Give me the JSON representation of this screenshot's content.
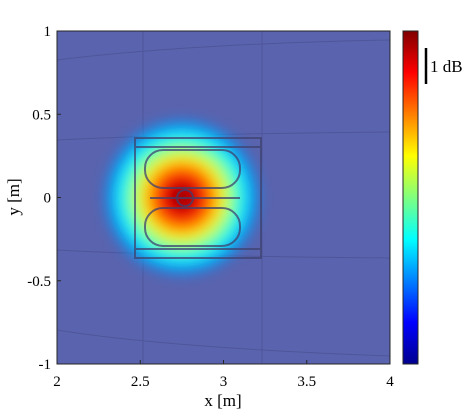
{
  "chart_data": {
    "type": "heatmap",
    "title": "",
    "xlabel": "x [m]",
    "ylabel": "y [m]",
    "xlim": [
      2,
      4
    ],
    "ylim": [
      -1,
      1
    ],
    "x_ticks": [
      2,
      2.5,
      3,
      3.5,
      4
    ],
    "x_tick_labels": [
      "2",
      "2.5",
      "3",
      "3.5",
      "4"
    ],
    "y_ticks": [
      -1,
      -0.5,
      0,
      0.5,
      1
    ],
    "y_tick_labels": [
      "-1",
      "-0.5",
      "0",
      "0.5",
      "1"
    ],
    "colormap": "jet",
    "colorbar": {
      "scale_label": "1 dB",
      "placement": "right"
    },
    "hotspot": {
      "x": 2.75,
      "y": 0,
      "peak_level": 1.0,
      "sigma_x": 0.24,
      "sigma_y": 0.24
    },
    "background_level": 0.12,
    "background_color": "#5a63ad",
    "overlay": "translucent component outline drawing",
    "grid": false
  }
}
